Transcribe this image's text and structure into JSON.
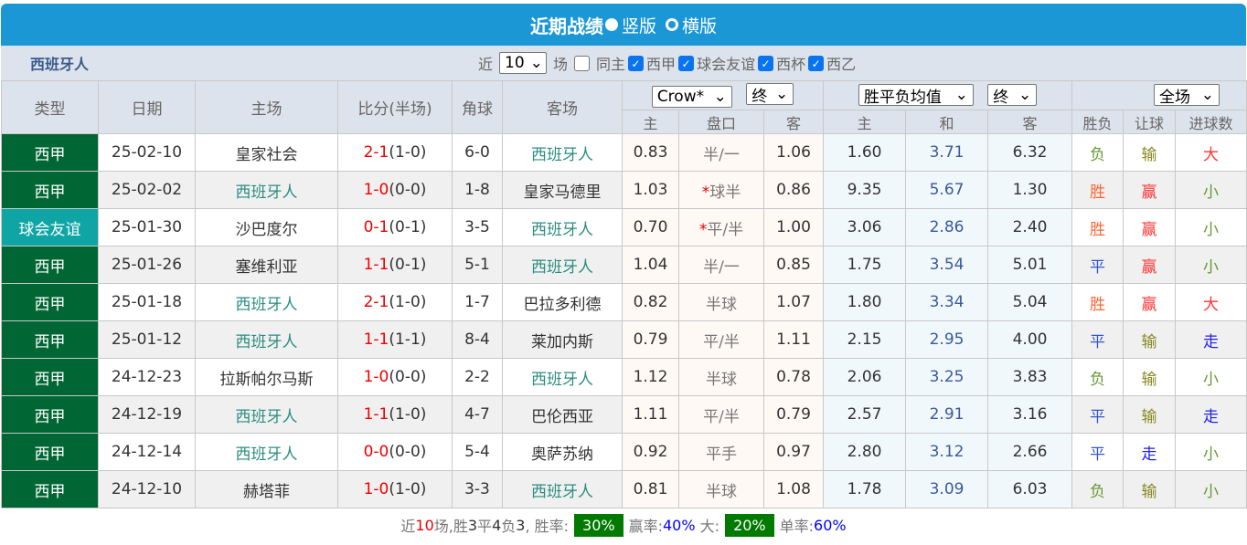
{
  "header": {
    "title": "近期战绩",
    "radio_vertical": "竖版",
    "radio_horizontal": "横版"
  },
  "filter": {
    "team": "西班牙人",
    "recent_prefix": "近",
    "recent_count": "10",
    "recent_suffix": "场",
    "same_home": "同主",
    "leagues": [
      "西甲",
      "球会友谊",
      "西杯",
      "西乙"
    ]
  },
  "columns": {
    "type": "类型",
    "date": "日期",
    "home": "主场",
    "score": "比分(半场)",
    "corner": "角球",
    "away": "客场",
    "odds_company": "Crow*",
    "odds_stage": "终",
    "avg_select": "胜平负均值",
    "avg_stage": "终",
    "result_scope": "全场",
    "sub": [
      "主",
      "盘口",
      "客",
      "主",
      "和",
      "客",
      "胜负",
      "让球",
      "进球数"
    ]
  },
  "colors": {
    "win": "#ff6633",
    "draw": "#3355cc",
    "lose": "#669933",
    "league": "#006634",
    "friendly": "#10a5a5",
    "header": "#1c97d6"
  },
  "rows": [
    {
      "type": "西甲",
      "date": "25-02-10",
      "home": "皇家社会",
      "ft": "2-1",
      "ht": "(1-0)",
      "corner": "6-0",
      "away": "西班牙人",
      "h": "0.83",
      "hc_star": "",
      "hc": "半/一",
      "a": "1.06",
      "w": "1.60",
      "d": "3.71",
      "l": "6.32",
      "res": "负",
      "ah": "输",
      "ou": "大"
    },
    {
      "type": "西甲",
      "date": "25-02-02",
      "home": "西班牙人",
      "ft": "1-0",
      "ht": "(0-0)",
      "corner": "1-8",
      "away": "皇家马德里",
      "h": "1.03",
      "hc_star": "*",
      "hc": "球半",
      "a": "0.86",
      "w": "9.35",
      "d": "5.67",
      "l": "1.30",
      "res": "胜",
      "ah": "赢",
      "ou": "小"
    },
    {
      "type": "球会友谊",
      "date": "25-01-30",
      "home": "沙巴度尔",
      "ft": "0-1",
      "ht": "(0-1)",
      "corner": "3-5",
      "away": "西班牙人",
      "h": "0.70",
      "hc_star": "*",
      "hc": "平/半",
      "a": "1.00",
      "w": "3.06",
      "d": "2.86",
      "l": "2.40",
      "res": "胜",
      "ah": "赢",
      "ou": "小"
    },
    {
      "type": "西甲",
      "date": "25-01-26",
      "home": "塞维利亚",
      "ft": "1-1",
      "ht": "(0-1)",
      "corner": "5-1",
      "away": "西班牙人",
      "h": "1.04",
      "hc_star": "",
      "hc": "半/一",
      "a": "0.85",
      "w": "1.75",
      "d": "3.54",
      "l": "5.01",
      "res": "平",
      "ah": "赢",
      "ou": "小"
    },
    {
      "type": "西甲",
      "date": "25-01-18",
      "home": "西班牙人",
      "ft": "2-1",
      "ht": "(1-0)",
      "corner": "1-7",
      "away": "巴拉多利德",
      "h": "0.82",
      "hc_star": "",
      "hc": "半球",
      "a": "1.07",
      "w": "1.80",
      "d": "3.34",
      "l": "5.04",
      "res": "胜",
      "ah": "赢",
      "ou": "大"
    },
    {
      "type": "西甲",
      "date": "25-01-12",
      "home": "西班牙人",
      "ft": "1-1",
      "ht": "(1-1)",
      "corner": "8-4",
      "away": "莱加内斯",
      "h": "0.79",
      "hc_star": "",
      "hc": "平/半",
      "a": "1.11",
      "w": "2.15",
      "d": "2.95",
      "l": "4.00",
      "res": "平",
      "ah": "输",
      "ou": "走"
    },
    {
      "type": "西甲",
      "date": "24-12-23",
      "home": "拉斯帕尔马斯",
      "ft": "1-0",
      "ht": "(0-0)",
      "corner": "2-2",
      "away": "西班牙人",
      "h": "1.12",
      "hc_star": "",
      "hc": "半球",
      "a": "0.78",
      "w": "2.06",
      "d": "3.25",
      "l": "3.83",
      "res": "负",
      "ah": "输",
      "ou": "小"
    },
    {
      "type": "西甲",
      "date": "24-12-19",
      "home": "西班牙人",
      "ft": "1-1",
      "ht": "(1-0)",
      "corner": "4-7",
      "away": "巴伦西亚",
      "h": "1.11",
      "hc_star": "",
      "hc": "平/半",
      "a": "0.79",
      "w": "2.57",
      "d": "2.91",
      "l": "3.16",
      "res": "平",
      "ah": "输",
      "ou": "走"
    },
    {
      "type": "西甲",
      "date": "24-12-14",
      "home": "西班牙人",
      "ft": "0-0",
      "ht": "(0-0)",
      "corner": "5-4",
      "away": "奥萨苏纳",
      "h": "0.92",
      "hc_star": "",
      "hc": "平手",
      "a": "0.97",
      "w": "2.80",
      "d": "3.12",
      "l": "2.66",
      "res": "平",
      "ah": "走",
      "ou": "小"
    },
    {
      "type": "西甲",
      "date": "24-12-10",
      "home": "赫塔菲",
      "ft": "1-0",
      "ht": "(1-0)",
      "corner": "3-3",
      "away": "西班牙人",
      "h": "0.81",
      "hc_star": "",
      "hc": "半球",
      "a": "1.08",
      "w": "1.78",
      "d": "3.09",
      "l": "6.03",
      "res": "负",
      "ah": "输",
      "ou": "小"
    }
  ],
  "summary": {
    "p1": "近",
    "n": "10",
    "p2": "场,胜",
    "w": "3",
    "p3": "平",
    "d": "4",
    "p4": "负",
    "l": "3",
    "p5": ", 胜率:",
    "win_rate": "30%",
    "p6": "赢率:",
    "ah_rate": "40%",
    "p7": "大:",
    "over_rate": "20%",
    "p8": "单率:",
    "odd_rate": "60%"
  }
}
